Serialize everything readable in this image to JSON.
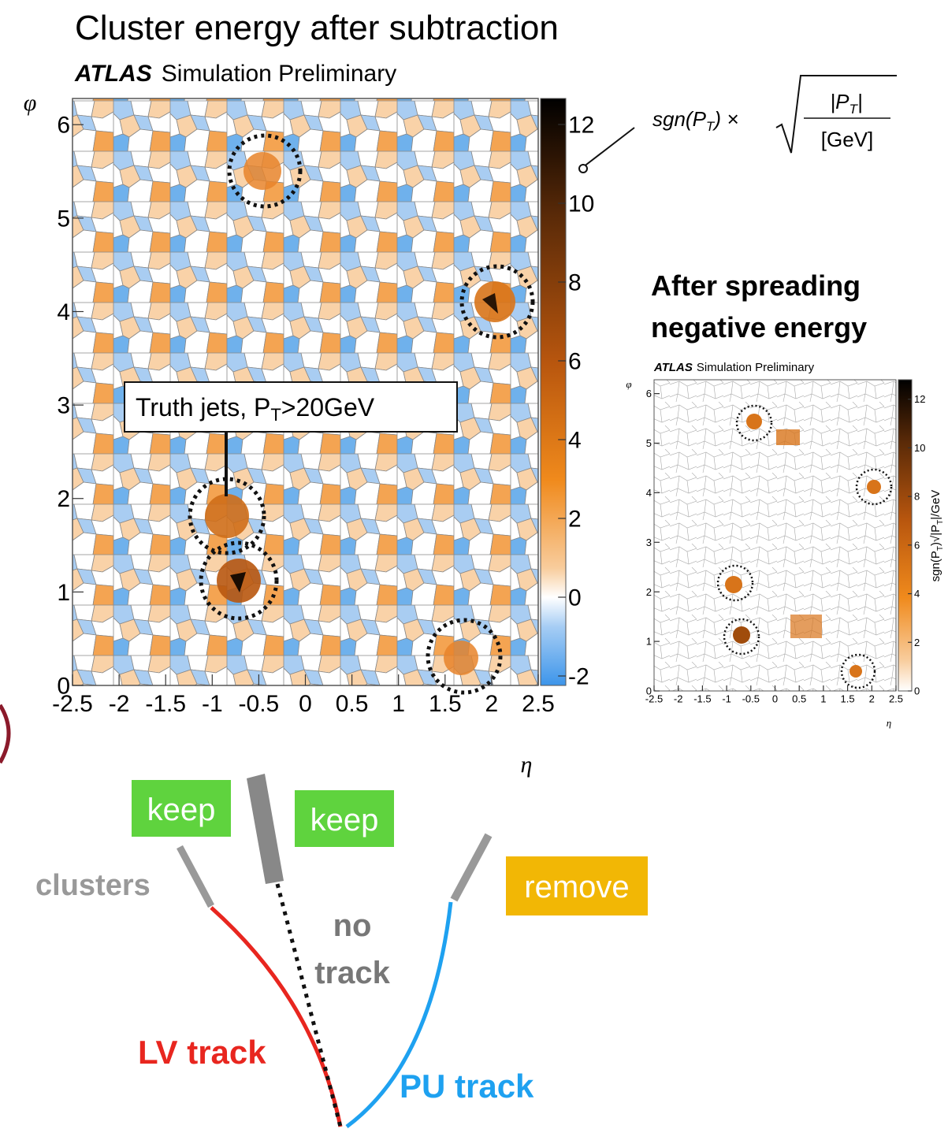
{
  "main_plot": {
    "title": "Cluster energy after subtraction",
    "experiment": "ATLAS",
    "label": "Simulation Preliminary",
    "y_axis_label": "φ",
    "x_axis_label": "η",
    "xlim": [
      -2.5,
      2.5
    ],
    "xticks": [
      -2.5,
      -2,
      -1.5,
      -1,
      -0.5,
      0,
      0.5,
      1,
      1.5,
      2,
      2.5
    ],
    "ylim": [
      0,
      6.28
    ],
    "yticks": [
      0,
      1,
      2,
      3,
      4,
      5,
      6
    ],
    "colorbar": {
      "lim": [
        -2.24,
        12.66
      ],
      "ticks": [
        -2,
        0,
        2,
        4,
        6,
        8,
        10,
        12
      ]
    },
    "annotation": {
      "text": "Truth jets, P",
      "subscript": "T",
      "text_end": ">20GeV"
    },
    "formula": {
      "lhs": "sgn(P",
      "lhs_sub": "T",
      "lhs_end": ") ×",
      "numerator": "|P",
      "numerator_sub": "T",
      "numerator_end": "|",
      "denominator": "[GeV]"
    }
  },
  "inset_plot": {
    "title_lines": [
      "After spreading",
      "negative energy"
    ],
    "experiment": "ATLAS",
    "label": "Simulation Preliminary",
    "y_axis_label": "φ",
    "x_axis_label": "η",
    "xlim": [
      -2.5,
      2.5
    ],
    "xticks": [
      -2.5,
      -2,
      -1.5,
      -1,
      -0.5,
      0,
      0.5,
      1,
      1.5,
      2,
      2.5
    ],
    "ylim": [
      0,
      6.28
    ],
    "yticks": [
      0,
      1,
      2,
      3,
      4,
      5,
      6
    ],
    "colorbar": {
      "lim": [
        0,
        12.8
      ],
      "ticks": [
        0,
        2,
        4,
        6,
        8,
        10,
        12
      ],
      "label": "sgn(P",
      "label_sub": "T",
      "label_mid": ")√|P",
      "label_sub2": "T",
      "label_end": "|/GeV"
    }
  },
  "diagram": {
    "keep_left": "keep",
    "keep_right": "keep",
    "remove": "remove",
    "clusters": "clusters",
    "no_track_lines": [
      "no",
      "track"
    ],
    "lv_track": "LV track",
    "pu_track": "PU track"
  }
}
